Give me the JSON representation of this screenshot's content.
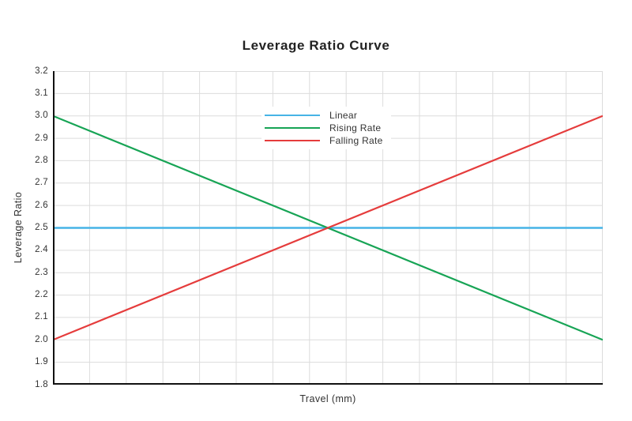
{
  "chart_data": {
    "type": "line",
    "title": "Leverage Ratio Curve",
    "xlabel": "Travel (mm)",
    "ylabel": "Leverage Ratio",
    "ylim": [
      1.8,
      3.2
    ],
    "y_ticks": [
      "3.2",
      "3.1",
      "3.0",
      "2.9",
      "2.8",
      "2.7",
      "2.6",
      "2.5",
      "2.4",
      "2.3",
      "2.2",
      "2.1",
      "2.0",
      "1.9",
      "1.8"
    ],
    "x_tick_labels_visible": false,
    "x_grid_divisions": 15,
    "grid": true,
    "legend_position": "upper center, inside plot",
    "series": [
      {
        "name": "Linear",
        "color": "#47b4e6",
        "start": 2.5,
        "end": 2.5
      },
      {
        "name": "Rising Rate",
        "color": "#17a455",
        "start": 3.0,
        "end": 2.0
      },
      {
        "name": "Falling Rate",
        "color": "#e53c3c",
        "start": 2.0,
        "end": 3.0
      }
    ],
    "colors": {
      "grid": "#dcdcdc",
      "axis": "#111111",
      "text": "#333333",
      "background": "#ffffff"
    }
  }
}
